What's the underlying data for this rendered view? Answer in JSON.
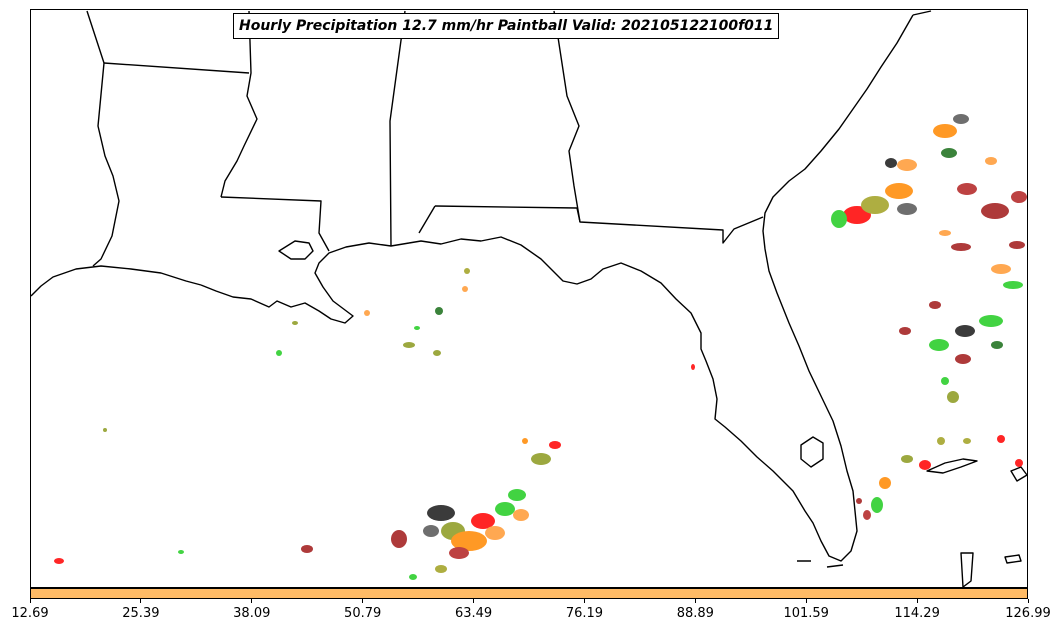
{
  "title": "Hourly Precipitation 12.7 mm/hr Paintball Valid: 202105122100f011",
  "colorbar": {
    "color": "#ffbb66",
    "ticks": [
      "12.69",
      "25.39",
      "38.09",
      "50.79",
      "63.49",
      "76.19",
      "88.89",
      "101.59",
      "114.29",
      "126.99"
    ]
  },
  "paintball_colors": [
    "#1a1a1a",
    "#555555",
    "#a01818",
    "#b22222",
    "#ff0000",
    "#ff8800",
    "#ff9933",
    "#8b9a1e",
    "#a0a020",
    "#22cc22",
    "#1a6e1a"
  ]
}
